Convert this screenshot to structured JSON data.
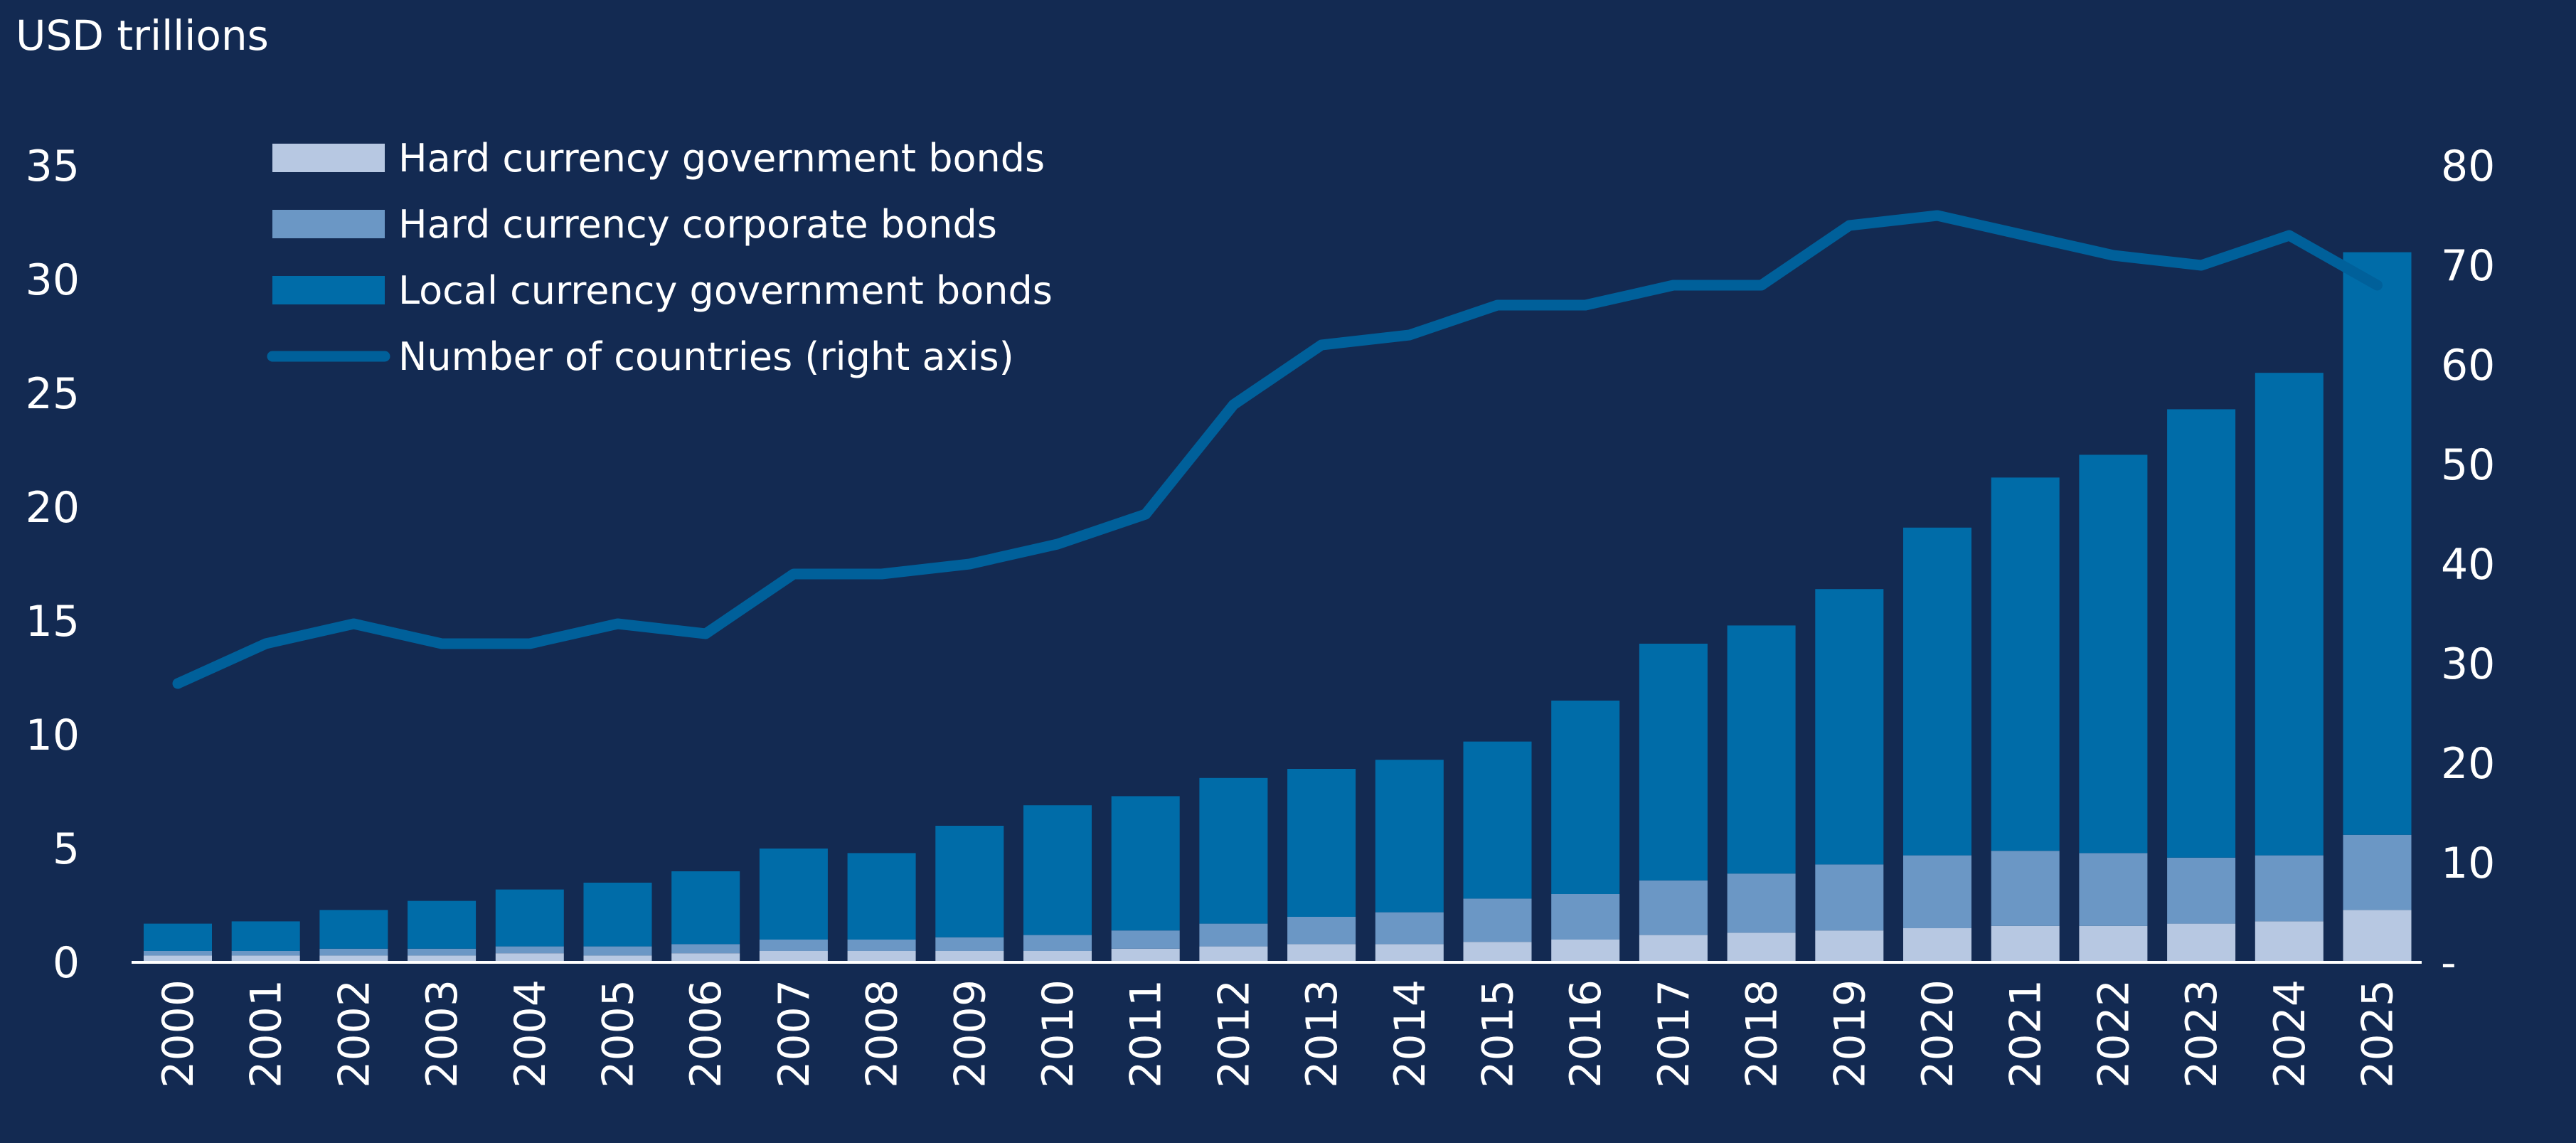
{
  "chart_data": {
    "type": "bar",
    "stacked": true,
    "unit_label": "USD trillions",
    "categories": [
      "2000",
      "2001",
      "2002",
      "2003",
      "2004",
      "2005",
      "2006",
      "2007",
      "2008",
      "2009",
      "2010",
      "2011",
      "2012",
      "2013",
      "2014",
      "2015",
      "2016",
      "2017",
      "2018",
      "2019",
      "2020",
      "2021",
      "2022",
      "2023",
      "2024",
      "2025"
    ],
    "series": [
      {
        "name": "Hard currency government bonds",
        "kind": "bar",
        "axis": "left",
        "color": "#b7c8e2",
        "values": [
          0.3,
          0.3,
          0.3,
          0.3,
          0.4,
          0.3,
          0.4,
          0.5,
          0.5,
          0.5,
          0.5,
          0.6,
          0.7,
          0.8,
          0.8,
          0.9,
          1.0,
          1.2,
          1.3,
          1.4,
          1.5,
          1.6,
          1.6,
          1.7,
          1.8,
          2.3
        ]
      },
      {
        "name": "Hard currency corporate bonds",
        "kind": "bar",
        "axis": "left",
        "color": "#6b97c5",
        "values": [
          0.2,
          0.2,
          0.3,
          0.3,
          0.3,
          0.4,
          0.4,
          0.5,
          0.5,
          0.6,
          0.7,
          0.8,
          1.0,
          1.2,
          1.4,
          1.9,
          2.0,
          2.4,
          2.6,
          2.9,
          3.2,
          3.3,
          3.2,
          2.9,
          2.9,
          3.3
        ]
      },
      {
        "name": "Local currency government bonds",
        "kind": "bar",
        "axis": "left",
        "color": "#006ca8",
        "values": [
          1.2,
          1.3,
          1.7,
          2.1,
          2.5,
          2.8,
          3.2,
          4.0,
          3.8,
          4.9,
          5.7,
          5.9,
          6.4,
          6.5,
          6.7,
          6.9,
          8.5,
          10.4,
          10.9,
          12.1,
          14.4,
          16.4,
          17.5,
          19.7,
          21.2,
          25.6
        ]
      },
      {
        "name": "Number of countries (right axis)",
        "kind": "line",
        "axis": "right",
        "color": "#00609a",
        "values": [
          28,
          32,
          34,
          32,
          32,
          34,
          33,
          39,
          39,
          40,
          42,
          45,
          56,
          62,
          63,
          66,
          66,
          68,
          68,
          74,
          75,
          73,
          71,
          70,
          73,
          68
        ]
      }
    ],
    "left_axis": {
      "min": 0,
      "max": 35,
      "ticks": [
        "0",
        "5",
        "10",
        "15",
        "20",
        "25",
        "30",
        "35"
      ]
    },
    "right_axis": {
      "min": 0,
      "max": 80,
      "ticks": [
        "-",
        "10",
        "20",
        "30",
        "40",
        "50",
        "60",
        "70",
        "80"
      ]
    },
    "legend_position": "top-left",
    "grid": false
  }
}
